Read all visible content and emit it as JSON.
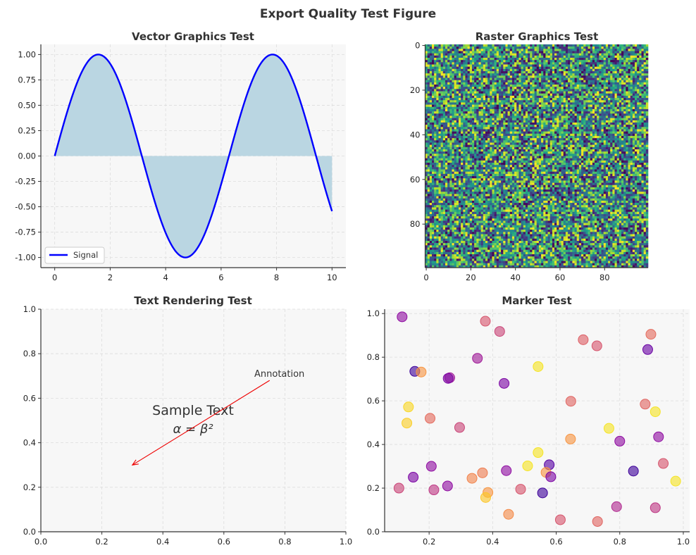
{
  "figure": {
    "suptitle": "Export Quality Test Figure"
  },
  "chart_data": [
    {
      "type": "line",
      "title": "Vector Graphics Test",
      "function": "sin",
      "x_range": [
        0,
        10
      ],
      "xlim": [
        -0.5,
        10.5
      ],
      "ylim": [
        -1.1,
        1.1
      ],
      "xticks": [
        0,
        2,
        4,
        6,
        8,
        10
      ],
      "yticks": [
        -1.0,
        -0.75,
        -0.5,
        -0.25,
        0.0,
        0.25,
        0.5,
        0.75,
        1.0
      ],
      "series": [
        {
          "name": "Signal",
          "color": "#0000ff"
        }
      ],
      "fill_color": "#bad6e2",
      "legend": "lower-left",
      "grid": true
    },
    {
      "type": "heatmap",
      "title": "Raster Graphics Test",
      "rows": 100,
      "cols": 100,
      "colormap": "viridis",
      "xticks": [
        0,
        20,
        40,
        60,
        80
      ],
      "yticks": [
        0,
        20,
        40,
        60,
        80
      ]
    },
    {
      "type": "annotation",
      "title": "Text Rendering Test",
      "xlim": [
        0,
        1
      ],
      "ylim": [
        0,
        1
      ],
      "xticks": [
        0.0,
        0.2,
        0.4,
        0.6,
        0.8,
        1.0
      ],
      "yticks": [
        0.0,
        0.2,
        0.4,
        0.6,
        0.8,
        1.0
      ],
      "center_text": "Sample Text",
      "center_text_pos": [
        0.5,
        0.5
      ],
      "formula": "α = β²",
      "annotation_text": "Annotation",
      "annotation_text_pos": [
        0.7,
        0.7
      ],
      "arrow_from": [
        0.75,
        0.68
      ],
      "arrow_to": [
        0.3,
        0.3
      ],
      "arrow_color": "#ee0000",
      "grid": true
    },
    {
      "type": "scatter",
      "title": "Marker Test",
      "xlim": [
        0.06,
        1.02
      ],
      "ylim": [
        0.0,
        1.02
      ],
      "xticks": [
        0.2,
        0.4,
        0.6,
        0.8,
        1.0
      ],
      "yticks": [
        0.0,
        0.2,
        0.4,
        0.6,
        0.8,
        1.0
      ],
      "colormap": "plasma",
      "grid": true,
      "points": [
        {
          "x": 0.115,
          "y": 0.985,
          "c": 0.3
        },
        {
          "x": 0.377,
          "y": 0.965,
          "c": 0.55
        },
        {
          "x": 0.422,
          "y": 0.918,
          "c": 0.5
        },
        {
          "x": 0.898,
          "y": 0.905,
          "c": 0.62
        },
        {
          "x": 0.685,
          "y": 0.88,
          "c": 0.58
        },
        {
          "x": 0.728,
          "y": 0.852,
          "c": 0.55
        },
        {
          "x": 0.888,
          "y": 0.835,
          "c": 0.2
        },
        {
          "x": 0.352,
          "y": 0.795,
          "c": 0.35
        },
        {
          "x": 0.543,
          "y": 0.757,
          "c": 0.95
        },
        {
          "x": 0.155,
          "y": 0.735,
          "c": 0.1
        },
        {
          "x": 0.175,
          "y": 0.732,
          "c": 0.75
        },
        {
          "x": 0.265,
          "y": 0.706,
          "c": 0.35
        },
        {
          "x": 0.26,
          "y": 0.703,
          "c": 0.25
        },
        {
          "x": 0.436,
          "y": 0.68,
          "c": 0.25
        },
        {
          "x": 0.646,
          "y": 0.598,
          "c": 0.6
        },
        {
          "x": 0.88,
          "y": 0.585,
          "c": 0.6
        },
        {
          "x": 0.135,
          "y": 0.572,
          "c": 0.92
        },
        {
          "x": 0.912,
          "y": 0.55,
          "c": 0.95
        },
        {
          "x": 0.203,
          "y": 0.52,
          "c": 0.62
        },
        {
          "x": 0.13,
          "y": 0.498,
          "c": 0.9
        },
        {
          "x": 0.296,
          "y": 0.478,
          "c": 0.5
        },
        {
          "x": 0.766,
          "y": 0.474,
          "c": 0.95
        },
        {
          "x": 0.922,
          "y": 0.435,
          "c": 0.3
        },
        {
          "x": 0.645,
          "y": 0.425,
          "c": 0.75
        },
        {
          "x": 0.8,
          "y": 0.415,
          "c": 0.3
        },
        {
          "x": 0.543,
          "y": 0.363,
          "c": 0.95
        },
        {
          "x": 0.937,
          "y": 0.313,
          "c": 0.55
        },
        {
          "x": 0.578,
          "y": 0.307,
          "c": 0.15
        },
        {
          "x": 0.51,
          "y": 0.302,
          "c": 0.95
        },
        {
          "x": 0.207,
          "y": 0.3,
          "c": 0.3
        },
        {
          "x": 0.443,
          "y": 0.28,
          "c": 0.3
        },
        {
          "x": 0.843,
          "y": 0.278,
          "c": 0.1
        },
        {
          "x": 0.568,
          "y": 0.272,
          "c": 0.75
        },
        {
          "x": 0.368,
          "y": 0.27,
          "c": 0.68
        },
        {
          "x": 0.583,
          "y": 0.252,
          "c": 0.25
        },
        {
          "x": 0.15,
          "y": 0.25,
          "c": 0.25
        },
        {
          "x": 0.335,
          "y": 0.245,
          "c": 0.7
        },
        {
          "x": 0.976,
          "y": 0.232,
          "c": 0.95
        },
        {
          "x": 0.258,
          "y": 0.21,
          "c": 0.3
        },
        {
          "x": 0.105,
          "y": 0.2,
          "c": 0.5
        },
        {
          "x": 0.488,
          "y": 0.195,
          "c": 0.55
        },
        {
          "x": 0.215,
          "y": 0.192,
          "c": 0.45
        },
        {
          "x": 0.385,
          "y": 0.18,
          "c": 0.75
        },
        {
          "x": 0.557,
          "y": 0.178,
          "c": 0.1
        },
        {
          "x": 0.378,
          "y": 0.157,
          "c": 0.88
        },
        {
          "x": 0.79,
          "y": 0.115,
          "c": 0.4
        },
        {
          "x": 0.912,
          "y": 0.11,
          "c": 0.45
        },
        {
          "x": 0.45,
          "y": 0.08,
          "c": 0.72
        },
        {
          "x": 0.613,
          "y": 0.055,
          "c": 0.55
        },
        {
          "x": 0.73,
          "y": 0.047,
          "c": 0.6
        }
      ]
    }
  ]
}
